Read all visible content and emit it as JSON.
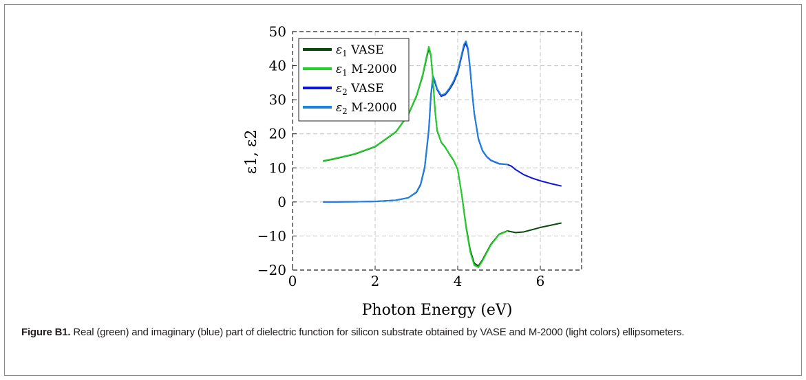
{
  "figure": {
    "caption_label": "Figure B1.",
    "caption_text": " Real (green) and imaginary (blue) part of dielectric function for silicon substrate obtained by VASE and M-2000 (light colors) ellipsometers."
  },
  "chart_data": {
    "type": "line",
    "title": "",
    "xlabel": "Photon Energy (eV)",
    "ylabel": "ε1, ε2",
    "xlim": [
      0,
      7
    ],
    "ylim": [
      -20,
      50
    ],
    "xticks": [
      0,
      2,
      4,
      6
    ],
    "yticks": [
      -20,
      -10,
      0,
      10,
      20,
      30,
      40,
      50
    ],
    "xtick_labels": [
      "0",
      "2",
      "4",
      "6"
    ],
    "ytick_labels": [
      "−20",
      "−10",
      "0",
      "10",
      "20",
      "30",
      "40",
      "50"
    ],
    "grid": true,
    "legend_position": "top-left",
    "series": [
      {
        "name": "ε1 VASE",
        "legend_symbol": "ε1",
        "legend_suffix": "VASE",
        "color": "#0a4a0a",
        "x": [
          0.75,
          1.0,
          1.5,
          2.0,
          2.5,
          2.8,
          3.0,
          3.15,
          3.25,
          3.3,
          3.35,
          3.4,
          3.45,
          3.5,
          3.6,
          3.7,
          3.8,
          3.9,
          4.0,
          4.1,
          4.2,
          4.3,
          4.4,
          4.5,
          4.6,
          4.8,
          5.0,
          5.2,
          5.4,
          5.6,
          6.0,
          6.5
        ],
        "y": [
          12.0,
          12.6,
          14.0,
          16.2,
          20.5,
          25.5,
          31.0,
          37.0,
          42.5,
          45.0,
          43.0,
          36.0,
          27.0,
          21.0,
          17.5,
          16.0,
          14.0,
          12.2,
          9.5,
          2.0,
          -7.0,
          -14.0,
          -18.0,
          -18.8,
          -17.0,
          -12.5,
          -9.5,
          -8.5,
          -9.0,
          -8.8,
          -7.5,
          -6.2
        ]
      },
      {
        "name": "ε1 M-2000",
        "legend_symbol": "ε1",
        "legend_suffix": "M-2000",
        "color": "#22d22a",
        "x": [
          0.75,
          1.0,
          1.5,
          2.0,
          2.5,
          2.8,
          3.0,
          3.15,
          3.25,
          3.3,
          3.35,
          3.4,
          3.45,
          3.5,
          3.6,
          3.7,
          3.8,
          3.9,
          4.0,
          4.1,
          4.2,
          4.3,
          4.4,
          4.5,
          4.6,
          4.8,
          5.0,
          5.2
        ],
        "y": [
          12.1,
          12.7,
          14.1,
          16.3,
          20.6,
          25.6,
          31.2,
          37.3,
          43.0,
          45.6,
          43.3,
          36.2,
          27.2,
          21.2,
          17.6,
          16.1,
          14.1,
          12.3,
          9.6,
          1.8,
          -7.4,
          -14.6,
          -18.6,
          -19.2,
          -17.3,
          -12.7,
          -9.6,
          -8.6
        ]
      },
      {
        "name": "ε2 VASE",
        "legend_symbol": "ε2",
        "legend_suffix": "VASE",
        "color": "#0b13d8",
        "x": [
          0.75,
          1.0,
          1.5,
          2.0,
          2.5,
          2.8,
          3.0,
          3.1,
          3.2,
          3.3,
          3.35,
          3.4,
          3.45,
          3.5,
          3.6,
          3.7,
          3.8,
          3.9,
          4.0,
          4.1,
          4.15,
          4.2,
          4.25,
          4.3,
          4.35,
          4.4,
          4.5,
          4.6,
          4.7,
          4.8,
          5.0,
          5.2,
          5.3,
          5.4,
          5.6,
          5.8,
          6.0,
          6.25,
          6.5
        ],
        "y": [
          0.0,
          0.0,
          0.05,
          0.15,
          0.5,
          1.2,
          2.8,
          5.0,
          10.0,
          21.0,
          31.0,
          36.5,
          35.0,
          33.0,
          31.0,
          31.5,
          33.0,
          35.0,
          38.0,
          43.0,
          45.5,
          46.5,
          44.5,
          39.0,
          32.0,
          26.0,
          18.5,
          15.0,
          13.3,
          12.2,
          11.2,
          11.0,
          10.5,
          9.5,
          8.0,
          7.0,
          6.2,
          5.4,
          4.7
        ]
      },
      {
        "name": "ε2 M-2000",
        "legend_symbol": "ε2",
        "legend_suffix": "M-2000",
        "color": "#1c84de",
        "x": [
          0.75,
          1.0,
          1.5,
          2.0,
          2.5,
          2.8,
          3.0,
          3.1,
          3.2,
          3.3,
          3.35,
          3.4,
          3.45,
          3.5,
          3.6,
          3.7,
          3.8,
          3.9,
          4.0,
          4.1,
          4.15,
          4.2,
          4.25,
          4.3,
          4.35,
          4.4,
          4.5,
          4.6,
          4.7,
          4.8,
          5.0,
          5.2
        ],
        "y": [
          0.0,
          0.0,
          0.05,
          0.15,
          0.5,
          1.2,
          2.9,
          5.2,
          10.3,
          21.5,
          31.5,
          37.0,
          35.5,
          33.3,
          31.3,
          31.8,
          33.4,
          35.5,
          38.5,
          43.6,
          46.2,
          47.2,
          45.0,
          39.4,
          32.3,
          26.2,
          18.7,
          15.1,
          13.4,
          12.3,
          11.3,
          11.0
        ]
      }
    ]
  }
}
